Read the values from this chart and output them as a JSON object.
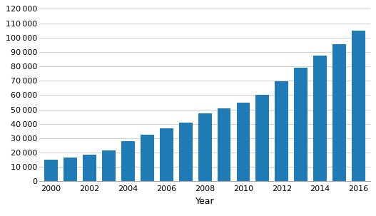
{
  "years": [
    2000,
    2001,
    2002,
    2003,
    2004,
    2005,
    2006,
    2007,
    2008,
    2009,
    2010,
    2011,
    2012,
    2013,
    2014,
    2015,
    2016
  ],
  "values": [
    15000,
    16500,
    18500,
    21500,
    28000,
    32500,
    37000,
    41000,
    47500,
    51000,
    55000,
    60000,
    69500,
    79000,
    87500,
    95500,
    105000
  ],
  "bar_color": "#1F7BB6",
  "xlabel": "Year",
  "ylim": [
    0,
    120000
  ],
  "yticks": [
    0,
    10000,
    20000,
    30000,
    40000,
    50000,
    60000,
    70000,
    80000,
    90000,
    100000,
    110000,
    120000
  ],
  "xtick_labels": [
    "2000",
    "2002",
    "2004",
    "2006",
    "2008",
    "2010",
    "2012",
    "2014",
    "2016"
  ],
  "xtick_positions": [
    2000,
    2002,
    2004,
    2006,
    2008,
    2010,
    2012,
    2014,
    2016
  ],
  "background_color": "#ffffff",
  "grid_color": "#d0d0d0",
  "bar_width": 0.7
}
